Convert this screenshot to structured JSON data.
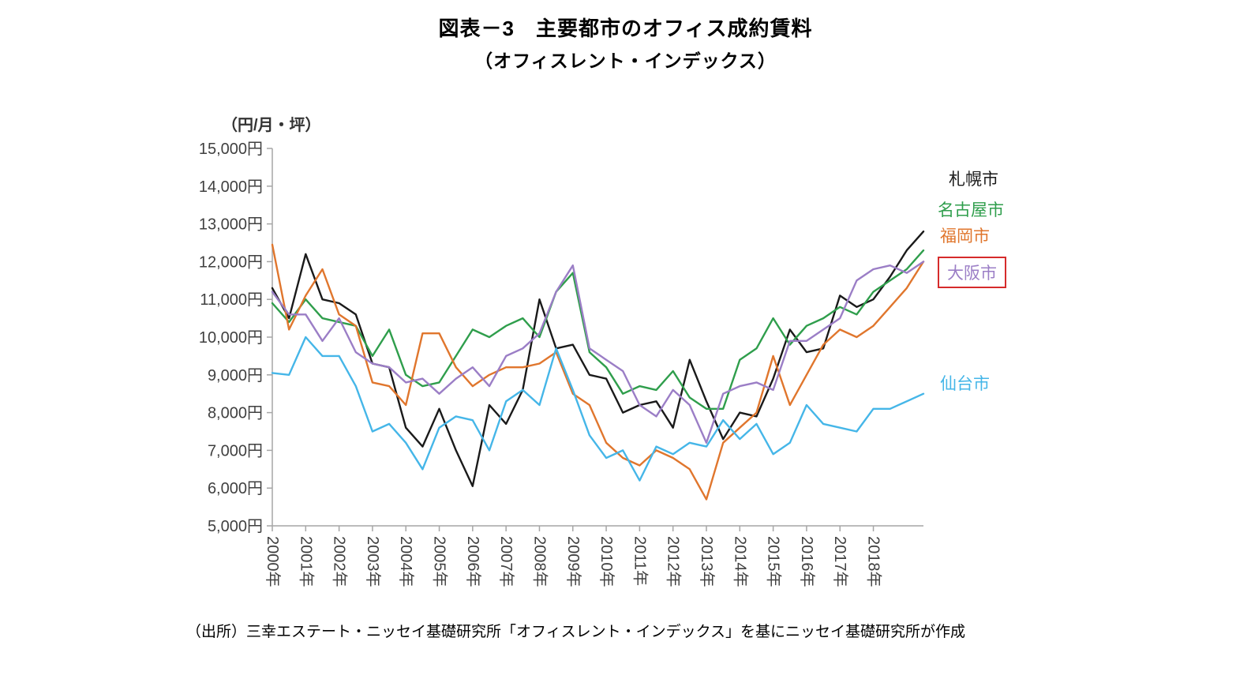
{
  "page": {
    "title": "図表－3　主要都市のオフィス成約賃料",
    "subtitle": "（オフィスレント・インデックス）",
    "source_note": "（出所）三幸エステート・ニッセイ基礎研究所「オフィスレント・インデックス」を基にニッセイ基礎研究所が作成"
  },
  "chart_data": {
    "type": "line",
    "title": "図表－3　主要都市のオフィス成約賃料",
    "subtitle": "（オフィスレント・インデックス）",
    "ylabel": "（円/月・坪）",
    "ylim": [
      5000,
      15000
    ],
    "grid": false,
    "legend_position": "right",
    "highlight_box_color": "#d62b2b",
    "points_per_year": 2,
    "y_ticks": [
      {
        "value": 5000,
        "label": "5,000円"
      },
      {
        "value": 6000,
        "label": "6,000円"
      },
      {
        "value": 7000,
        "label": "7,000円"
      },
      {
        "value": 8000,
        "label": "8,000円"
      },
      {
        "value": 9000,
        "label": "9,000円"
      },
      {
        "value": 10000,
        "label": "10,000円"
      },
      {
        "value": 11000,
        "label": "11,000円"
      },
      {
        "value": 12000,
        "label": "12,000円"
      },
      {
        "value": 13000,
        "label": "13,000円"
      },
      {
        "value": 14000,
        "label": "14,000円"
      },
      {
        "value": 15000,
        "label": "15,000円"
      }
    ],
    "x_tick_labels": [
      "2000年",
      "2001年",
      "2002年",
      "2003年",
      "2004年",
      "2005年",
      "2006年",
      "2007年",
      "2008年",
      "2009年",
      "2010年",
      "2011年",
      "2012年",
      "2013年",
      "2014年",
      "2015年",
      "2016年",
      "2017年",
      "2018年"
    ],
    "series": [
      {
        "name": "札幌市",
        "color": "#1a1a1a",
        "highlighted": false,
        "values": [
          11300,
          10500,
          12200,
          11000,
          10900,
          10600,
          9300,
          9200,
          7600,
          7100,
          8100,
          7000,
          6050,
          8200,
          7700,
          8600,
          11000,
          9700,
          9800,
          9000,
          8900,
          8000,
          8200,
          8300,
          7600,
          9400,
          8300,
          7300,
          8000,
          7900,
          8900,
          10200,
          9600,
          9700,
          11100,
          10800,
          11000,
          11600,
          12300,
          12800
        ]
      },
      {
        "name": "名古屋市",
        "color": "#2f9e4c",
        "highlighted": false,
        "values": [
          10900,
          10400,
          11000,
          10500,
          10400,
          10300,
          9500,
          10200,
          9000,
          8700,
          8800,
          9500,
          10200,
          10000,
          10300,
          10500,
          10000,
          11200,
          11700,
          9600,
          9200,
          8500,
          8700,
          8600,
          9100,
          8400,
          8100,
          8100,
          9400,
          9700,
          10500,
          9800,
          10300,
          10500,
          10800,
          10600,
          11200,
          11500,
          11800,
          12300
        ]
      },
      {
        "name": "福岡市",
        "color": "#e0762d",
        "highlighted": false,
        "values": [
          12450,
          10200,
          11100,
          11800,
          10600,
          10300,
          8800,
          8700,
          8200,
          10100,
          10100,
          9200,
          8700,
          9000,
          9200,
          9200,
          9300,
          9600,
          8500,
          8200,
          7200,
          6800,
          6600,
          7000,
          6800,
          6500,
          5700,
          7200,
          7600,
          8000,
          9500,
          8200,
          9000,
          9800,
          10200,
          10000,
          10300,
          10800,
          11300,
          12000
        ]
      },
      {
        "name": "大阪市",
        "color": "#9b7ec6",
        "highlighted": true,
        "values": [
          11200,
          10600,
          10600,
          9900,
          10500,
          9600,
          9300,
          9200,
          8800,
          8900,
          8500,
          8900,
          9200,
          8700,
          9500,
          9700,
          10100,
          11200,
          11900,
          9700,
          9400,
          9100,
          8200,
          7900,
          8600,
          8200,
          7200,
          8500,
          8700,
          8800,
          8600,
          9900,
          9900,
          10200,
          10500,
          11500,
          11800,
          11900,
          11700,
          12000
        ]
      },
      {
        "name": "仙台市",
        "color": "#45b6e8",
        "highlighted": false,
        "values": [
          9050,
          9000,
          10000,
          9500,
          9500,
          8700,
          7500,
          7700,
          7200,
          6500,
          7600,
          7900,
          7800,
          7000,
          8300,
          8600,
          8200,
          9700,
          8600,
          7400,
          6800,
          7000,
          6200,
          7100,
          6900,
          7200,
          7100,
          7800,
          7300,
          7700,
          6900,
          7200,
          8200,
          7700,
          7600,
          7500,
          8100,
          8100,
          8300,
          8500
        ]
      }
    ]
  }
}
